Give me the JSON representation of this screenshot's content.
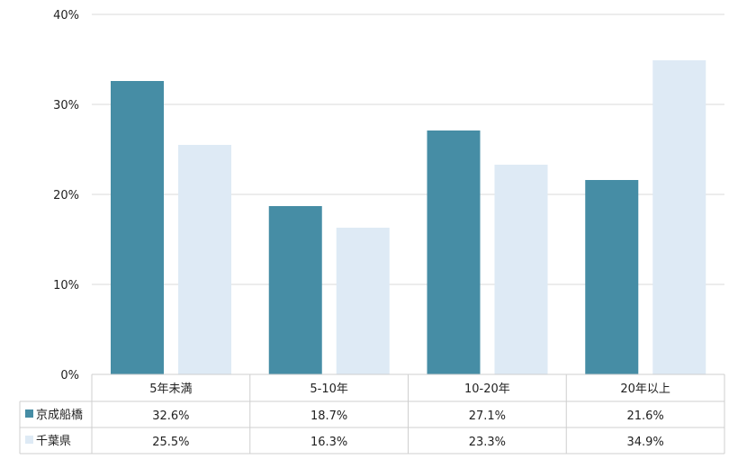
{
  "chart_data": {
    "type": "bar",
    "categories": [
      "5年未満",
      "5-10年",
      "10-20年",
      "20年以上"
    ],
    "series": [
      {
        "name": "京成船橋",
        "values": [
          32.6,
          18.7,
          27.1,
          21.6
        ],
        "labels": [
          "32.6%",
          "18.7%",
          "27.1%",
          "21.6%"
        ],
        "color": "#468DA5"
      },
      {
        "name": "千葉県",
        "values": [
          25.5,
          16.3,
          23.3,
          34.9
        ],
        "labels": [
          "25.5%",
          "16.3%",
          "23.3%",
          "34.9%"
        ],
        "color": "#DEEAF5"
      }
    ],
    "yticks": [
      "0%",
      "10%",
      "20%",
      "30%",
      "40%"
    ],
    "ylim": [
      0,
      40
    ],
    "grid": true,
    "legend": "data-table-left"
  }
}
